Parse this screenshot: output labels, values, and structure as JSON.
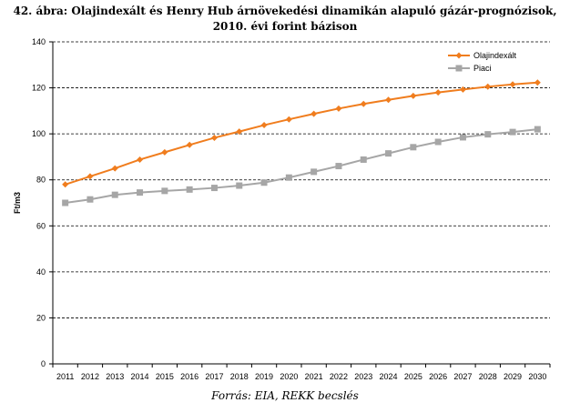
{
  "chart_data": {
    "type": "line",
    "title": "42. ábra: Olajindexált és Henry Hub árnövekedési dinamikán alapuló gázár-prognózisok, 2010. évi forint bázison",
    "xlabel": "",
    "ylabel": "Ft/m3",
    "ylim": [
      0,
      140
    ],
    "yticks": [
      "0",
      "20",
      "40",
      "60",
      "80",
      "100",
      "120",
      "140"
    ],
    "grid": "horizontal dashed",
    "legend": "top-right",
    "categories": [
      "2011",
      "2012",
      "2013",
      "2014",
      "2015",
      "2016",
      "2017",
      "2018",
      "2019",
      "2020",
      "2021",
      "2022",
      "2023",
      "2024",
      "2025",
      "2026",
      "2027",
      "2028",
      "2029",
      "2030"
    ],
    "series": [
      {
        "name": "Olajindexált",
        "color": "#f07d1e",
        "marker": "diamond",
        "values": [
          78,
          81.5,
          85,
          88.8,
          92,
          95.2,
          98.3,
          101,
          103.8,
          106.3,
          108.7,
          111,
          113,
          114.8,
          116.5,
          118,
          119.3,
          120.5,
          121.5,
          122.3
        ]
      },
      {
        "name": "Piaci",
        "color": "#a6a6a6",
        "marker": "square",
        "values": [
          70,
          71.5,
          73.5,
          74.5,
          75.2,
          75.8,
          76.5,
          77.5,
          78.8,
          81,
          83.5,
          86,
          88.8,
          91.5,
          94.2,
          96.5,
          98.5,
          99.8,
          100.8,
          102
        ]
      }
    ],
    "source": "Forrás: EIA, REKK becslés"
  }
}
